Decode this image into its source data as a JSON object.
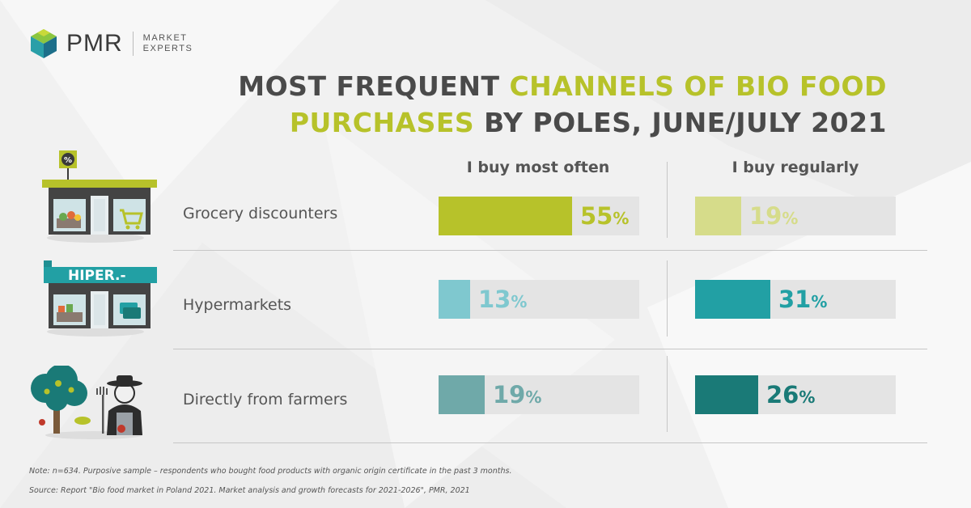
{
  "logo": {
    "name": "PMR",
    "sub_line1": "MARKET",
    "sub_line2": "EXPERTS"
  },
  "title": {
    "part1": "MOST FREQUENT ",
    "highlight1": "CHANNELS OF BIO FOOD",
    "highlight2": "PURCHASES",
    "part2": " BY POLES, JUNE/JULY 2021"
  },
  "icons": {
    "hypermarket_sign": "HIPER.-",
    "discounter_sign": "%"
  },
  "chart_data": {
    "type": "bar",
    "categories": [
      "Grocery discounters",
      "Hypermarkets",
      "Directly from farmers"
    ],
    "series": [
      {
        "name": "I buy most often",
        "values": [
          55,
          13,
          19
        ],
        "colors": [
          "#b7c22a",
          "#7fc8cf",
          "#6fa9a9"
        ]
      },
      {
        "name": "I buy regularly",
        "values": [
          19,
          31,
          26
        ],
        "colors": [
          "#d6dc8a",
          "#22a0a4",
          "#1a7a77"
        ]
      }
    ],
    "unit": "%",
    "xlim": [
      0,
      100
    ],
    "value_label_colors": [
      [
        "#b7c22a",
        "#7fc8cf",
        "#6fa9a9"
      ],
      [
        "#d6dc8a",
        "#22a0a4",
        "#1a7a77"
      ]
    ]
  },
  "notes": {
    "note": "Note: n=634. Purposive sample – respondents who bought food products with organic origin certificate in the past 3 months.",
    "source": "Source: Report \"Bio food market in Poland 2021. Market analysis and growth forecasts for 2021-2026\", PMR, 2021"
  }
}
